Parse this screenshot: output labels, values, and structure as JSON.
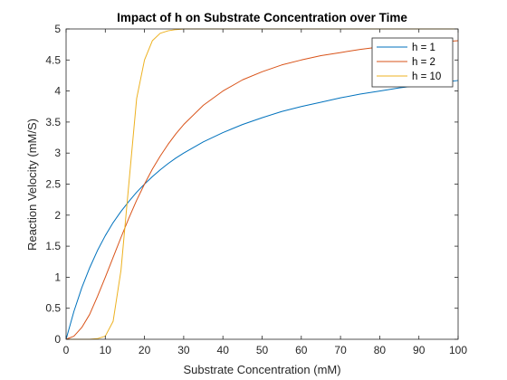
{
  "chart_data": {
    "type": "line",
    "title": "Impact of h on Substrate Concentration over Time",
    "xlabel": "Substrate Concentration (mM)",
    "ylabel": "Reaction Velocity (mM/S)",
    "xlim": [
      0,
      100
    ],
    "ylim": [
      0,
      5
    ],
    "xticks": [
      0,
      10,
      20,
      30,
      40,
      50,
      60,
      70,
      80,
      90,
      100
    ],
    "yticks": [
      0,
      0.5,
      1,
      1.5,
      2,
      2.5,
      3,
      3.5,
      4,
      4.5,
      5
    ],
    "ytick_labels": [
      "0",
      "0.5",
      "1",
      "1.5",
      "2",
      "2.5",
      "3",
      "3.5",
      "4",
      "4.5",
      "5"
    ],
    "grid": false,
    "legend_position": "top-right",
    "x": [
      0,
      2,
      4,
      6,
      8,
      10,
      12,
      14,
      16,
      18,
      20,
      22,
      24,
      26,
      28,
      30,
      35,
      40,
      45,
      50,
      55,
      60,
      65,
      70,
      75,
      80,
      85,
      90,
      95,
      100
    ],
    "series": [
      {
        "name": "h = 1",
        "color": "#0072BD",
        "values": [
          0,
          0.45,
          0.83,
          1.15,
          1.43,
          1.67,
          1.88,
          2.06,
          2.22,
          2.37,
          2.5,
          2.62,
          2.73,
          2.83,
          2.92,
          3.0,
          3.18,
          3.33,
          3.46,
          3.57,
          3.67,
          3.75,
          3.82,
          3.89,
          3.95,
          4.0,
          4.05,
          4.09,
          4.13,
          4.17
        ]
      },
      {
        "name": "h = 2",
        "color": "#D95319",
        "values": [
          0,
          0.05,
          0.19,
          0.4,
          0.69,
          1.0,
          1.32,
          1.64,
          1.95,
          2.24,
          2.5,
          2.74,
          2.95,
          3.14,
          3.31,
          3.46,
          3.77,
          4.0,
          4.18,
          4.31,
          4.42,
          4.5,
          4.57,
          4.62,
          4.67,
          4.71,
          4.74,
          4.76,
          4.79,
          4.81
        ]
      },
      {
        "name": "h = 10",
        "color": "#EDB120",
        "values": [
          0,
          0,
          0,
          0,
          0.01,
          0.05,
          0.29,
          1.11,
          2.5,
          3.88,
          4.5,
          4.81,
          4.93,
          4.97,
          4.99,
          5.0,
          5.0,
          5.0,
          5.0,
          5.0,
          5.0,
          5.0,
          5.0,
          5.0,
          5.0,
          5.0,
          5.0,
          5.0,
          5.0,
          5.0
        ]
      }
    ]
  }
}
